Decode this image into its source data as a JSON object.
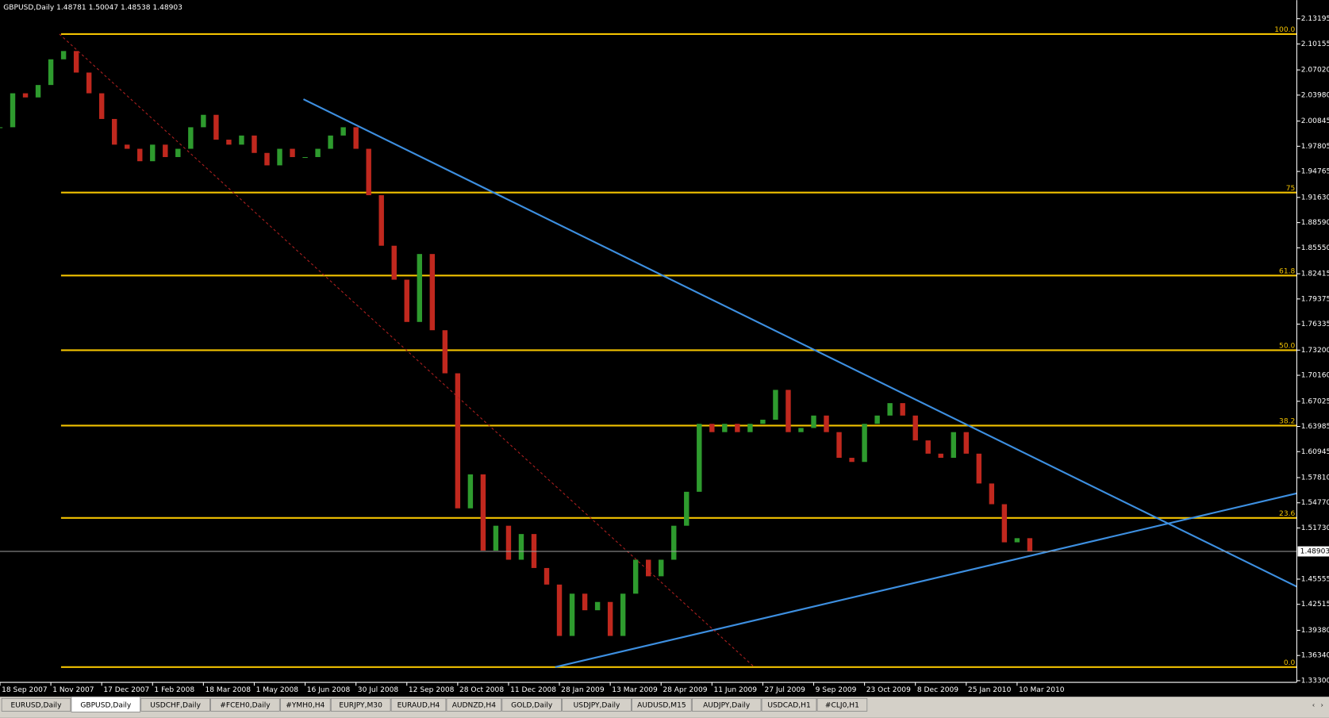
{
  "header": "GBPUSD,Daily  1.48781 1.50047 1.48538 1.48903",
  "tabs": [
    "EURUSD,Daily",
    "GBPUSD,Daily",
    "USDCHF,Daily",
    "#FCEH0,Daily",
    "#YMH0,H4",
    "EURJPY,M30",
    "EURAUD,H4",
    "AUDNZD,H4",
    "GOLD,Daily",
    "USDJPY,Daily",
    "AUDUSD,M15",
    "AUDJPY,Daily",
    "USDCAD,H1",
    "#CLJ0,H1"
  ],
  "active_tab": 1,
  "chart_data": {
    "type": "candles",
    "values": [
      2.001,
      2.042,
      2.037,
      2.052,
      2.083,
      2.093,
      2.067,
      2.042,
      2.011,
      1.98,
      1.975,
      1.96,
      1.98,
      1.965,
      1.975,
      2.001,
      2.016,
      1.986,
      1.98,
      1.991,
      1.97,
      1.955,
      1.975,
      1.965,
      1.965,
      1.975,
      1.991,
      2.001,
      1.975,
      1.919,
      1.858,
      1.817,
      1.766,
      1.848,
      1.756,
      1.704,
      1.541,
      1.582,
      1.49,
      1.52,
      1.479,
      1.51,
      1.469,
      1.449,
      1.387,
      1.438,
      1.418,
      1.428,
      1.387,
      1.438,
      1.479,
      1.459,
      1.479,
      1.52,
      1.561,
      1.643,
      1.633,
      1.643,
      1.633,
      1.643,
      1.648,
      1.684,
      1.633,
      1.638,
      1.653,
      1.633,
      1.602,
      1.597,
      1.643,
      1.653,
      1.668,
      1.653,
      1.623,
      1.607,
      1.602,
      1.633,
      1.607,
      1.571,
      1.546,
      1.5,
      1.505,
      1.48903
    ],
    "up_color": "#2e9b2e",
    "down_color": "#c0281e",
    "xlim": [
      0,
      102
    ],
    "xticks": [
      {
        "value": 0,
        "label": "18 Sep 2007"
      },
      {
        "value": 4,
        "label": "1 Nov 2007"
      },
      {
        "value": 8,
        "label": "17 Dec 2007"
      },
      {
        "value": 12,
        "label": "1 Feb 2008"
      },
      {
        "value": 16,
        "label": "18 Mar 2008"
      },
      {
        "value": 20,
        "label": "1 May 2008"
      },
      {
        "value": 24,
        "label": "16 Jun 2008"
      },
      {
        "value": 28,
        "label": "30 Jul 2008"
      },
      {
        "value": 32,
        "label": "12 Sep 2008"
      },
      {
        "value": 36,
        "label": "28 Oct 2008"
      },
      {
        "value": 40,
        "label": "11 Dec 2008"
      },
      {
        "value": 44,
        "label": "28 Jan 2009"
      },
      {
        "value": 48,
        "label": "13 Mar 2009"
      },
      {
        "value": 52,
        "label": "28 Apr 2009"
      },
      {
        "value": 56,
        "label": "11 Jun 2009"
      },
      {
        "value": 60,
        "label": "27 Jul 2009"
      },
      {
        "value": 64,
        "label": "9 Sep 2009"
      },
      {
        "value": 68,
        "label": "23 Oct 2009"
      },
      {
        "value": 72,
        "label": "8 Dec 2009"
      },
      {
        "value": 76,
        "label": "25 Jan 2010"
      },
      {
        "value": 80,
        "label": "10 Mar 2010"
      }
    ],
    "ylim": [
      1.331,
      2.1545
    ],
    "yticks": [
      2.13195,
      2.10155,
      {
        "value": 2.0702,
        "label": "2.07020"
      },
      {
        "value": 2.0398,
        "label": "2.03980"
      },
      2.00845,
      1.97805,
      1.94765,
      {
        "value": 1.9163,
        "label": "1.91630"
      },
      {
        "value": 1.8859,
        "label": "1.88590"
      },
      {
        "value": 1.8555,
        "label": "1.85550"
      },
      1.82415,
      1.79375,
      1.76335,
      {
        "value": 1.732,
        "label": "1.73200"
      },
      {
        "value": 1.7016,
        "label": "1.70160"
      },
      1.67025,
      1.63985,
      1.60945,
      {
        "value": 1.5781,
        "label": "1.57810"
      },
      {
        "value": 1.5477,
        "label": "1.54770"
      },
      {
        "value": 1.5173,
        "label": "1.51730"
      },
      1.45555,
      1.42515,
      {
        "value": 1.3938,
        "label": "1.39380"
      },
      {
        "value": 1.3634,
        "label": "1.36340"
      },
      {
        "value": 1.333,
        "label": "1.33300"
      }
    ],
    "current_price": 1.48903,
    "fib_start": 4.8,
    "fib_color": "#f2c200",
    "fib_levels": [
      {
        "label": "100.0",
        "price": 2.1135
      },
      {
        "label": "75",
        "price": 1.9222
      },
      {
        "label": "61.8",
        "price": 1.822
      },
      {
        "label": "50.0",
        "price": 1.7319
      },
      {
        "label": "38.2",
        "price": 1.6409
      },
      {
        "label": "23.6",
        "price": 1.5294
      },
      {
        "label": "0.0",
        "price": 1.3494
      }
    ],
    "trendlines": [
      {
        "color": "#3d8fe0",
        "x": [
          23.87,
          102
        ],
        "y": [
          2.0348,
          1.4465
        ]
      },
      {
        "color": "#3d8fe0",
        "x": [
          43.67,
          102
        ],
        "y": [
          1.3494,
          1.5591
        ]
      },
      {
        "color": "#b02020",
        "dashed": true,
        "x": [
          4.67,
          59.33
        ],
        "y": [
          2.1135,
          1.3494
        ]
      }
    ]
  }
}
